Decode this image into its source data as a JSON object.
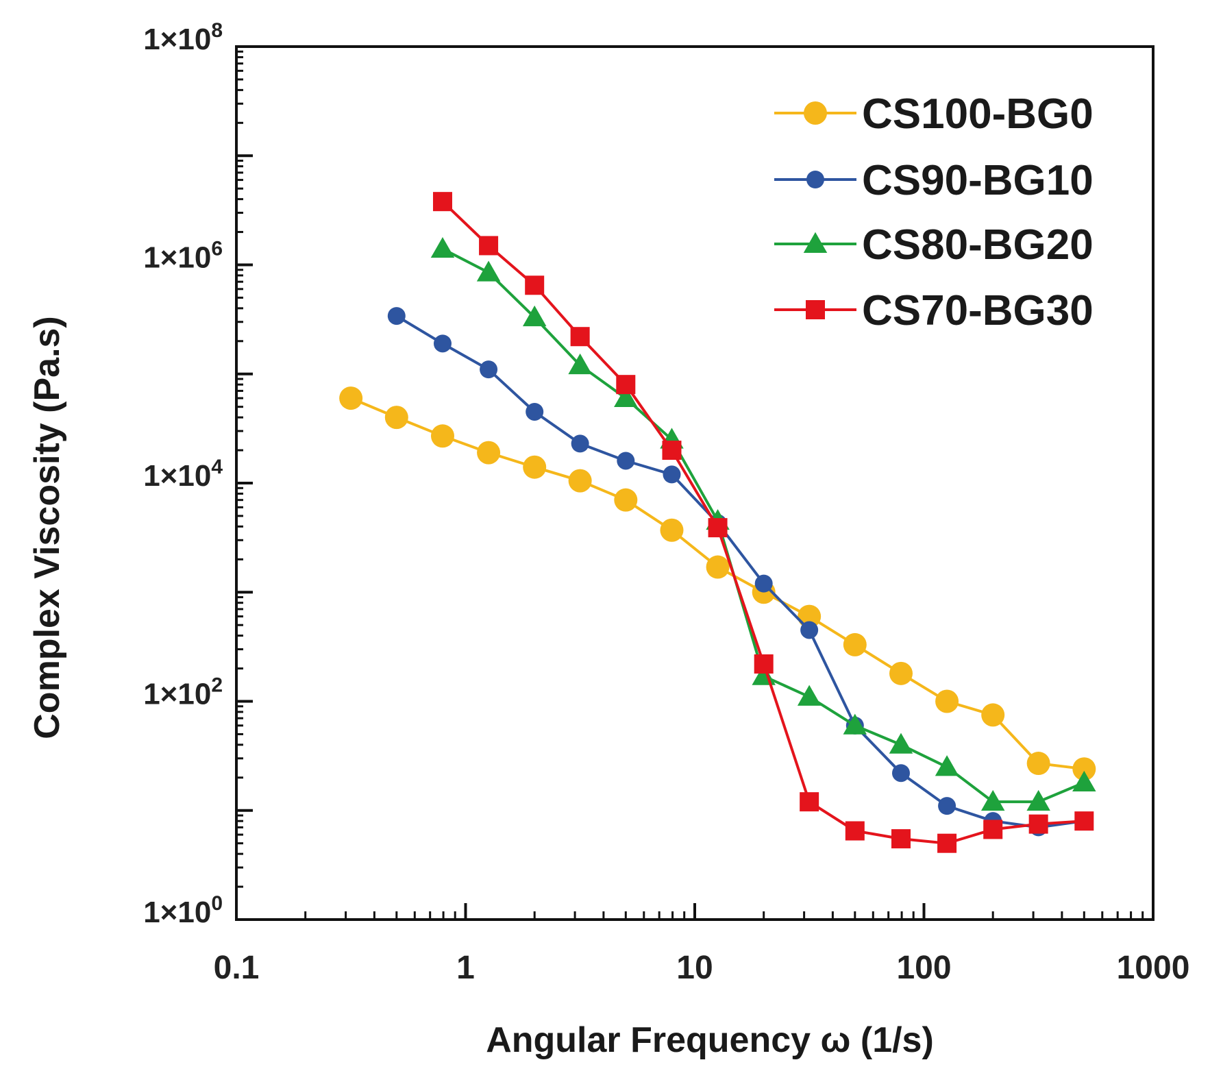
{
  "chart_data": {
    "type": "line",
    "xscale": "log",
    "yscale": "log",
    "xlim": [
      0.1,
      1000
    ],
    "ylim": [
      1,
      100000000
    ],
    "xlabel": "Angular Frequency ω (1/s)",
    "ylabel": "Complex Viscosity (Pa.s)",
    "xtick_labels": [
      "0.1",
      "1",
      "10",
      "100",
      "1000"
    ],
    "ytick_labels": [
      {
        "base": "1×10",
        "exp": "0"
      },
      {
        "base": "1×10",
        "exp": "2"
      },
      {
        "base": "1×10",
        "exp": "4"
      },
      {
        "base": "1×10",
        "exp": "6"
      },
      {
        "base": "1×10",
        "exp": "8"
      }
    ],
    "legend_position": "top-right",
    "grid": false,
    "series": [
      {
        "name": "CS100-BG0",
        "color": "#F5B71B",
        "marker": "circle",
        "x": [
          0.316,
          0.5,
          0.794,
          1.26,
          2.0,
          3.16,
          5.0,
          7.94,
          12.6,
          20.0,
          31.6,
          50.0,
          79.4,
          126,
          200,
          316,
          500
        ],
        "y": [
          60000,
          40000,
          27000,
          19000,
          14000,
          10500,
          7000,
          3700,
          1700,
          1000,
          600,
          330,
          180,
          100,
          75,
          27,
          24
        ]
      },
      {
        "name": "CS90-BG10",
        "color": "#2E55A0",
        "marker": "circle",
        "x": [
          0.5,
          0.794,
          1.26,
          2.0,
          3.16,
          5.0,
          7.94,
          12.6,
          20.0,
          31.6,
          50.0,
          79.4,
          126,
          200,
          316,
          500
        ],
        "y": [
          340000,
          190000,
          110000,
          45000,
          23000,
          16000,
          12000,
          4300,
          1200,
          450,
          60,
          22,
          11,
          8,
          7,
          8
        ]
      },
      {
        "name": "CS80-BG20",
        "color": "#1EA23C",
        "marker": "triangle",
        "x": [
          0.794,
          1.26,
          2.0,
          3.16,
          5.0,
          7.94,
          12.6,
          20.0,
          31.6,
          50.0,
          79.4,
          126,
          200,
          316,
          500
        ],
        "y": [
          1400000,
          850000,
          330000,
          120000,
          60000,
          25000,
          4500,
          170,
          110,
          60,
          40,
          25,
          12,
          12,
          18
        ]
      },
      {
        "name": "CS70-BG30",
        "color": "#E4141C",
        "marker": "square",
        "x": [
          0.794,
          1.26,
          2.0,
          3.16,
          5.0,
          7.94,
          12.6,
          20.0,
          31.6,
          50.0,
          79.4,
          126,
          200,
          316,
          500
        ],
        "y": [
          3800000,
          1500000,
          650000,
          220000,
          80000,
          20000,
          3900,
          220,
          12,
          6.5,
          5.5,
          5.0,
          6.7,
          7.5,
          8.0
        ]
      }
    ]
  }
}
